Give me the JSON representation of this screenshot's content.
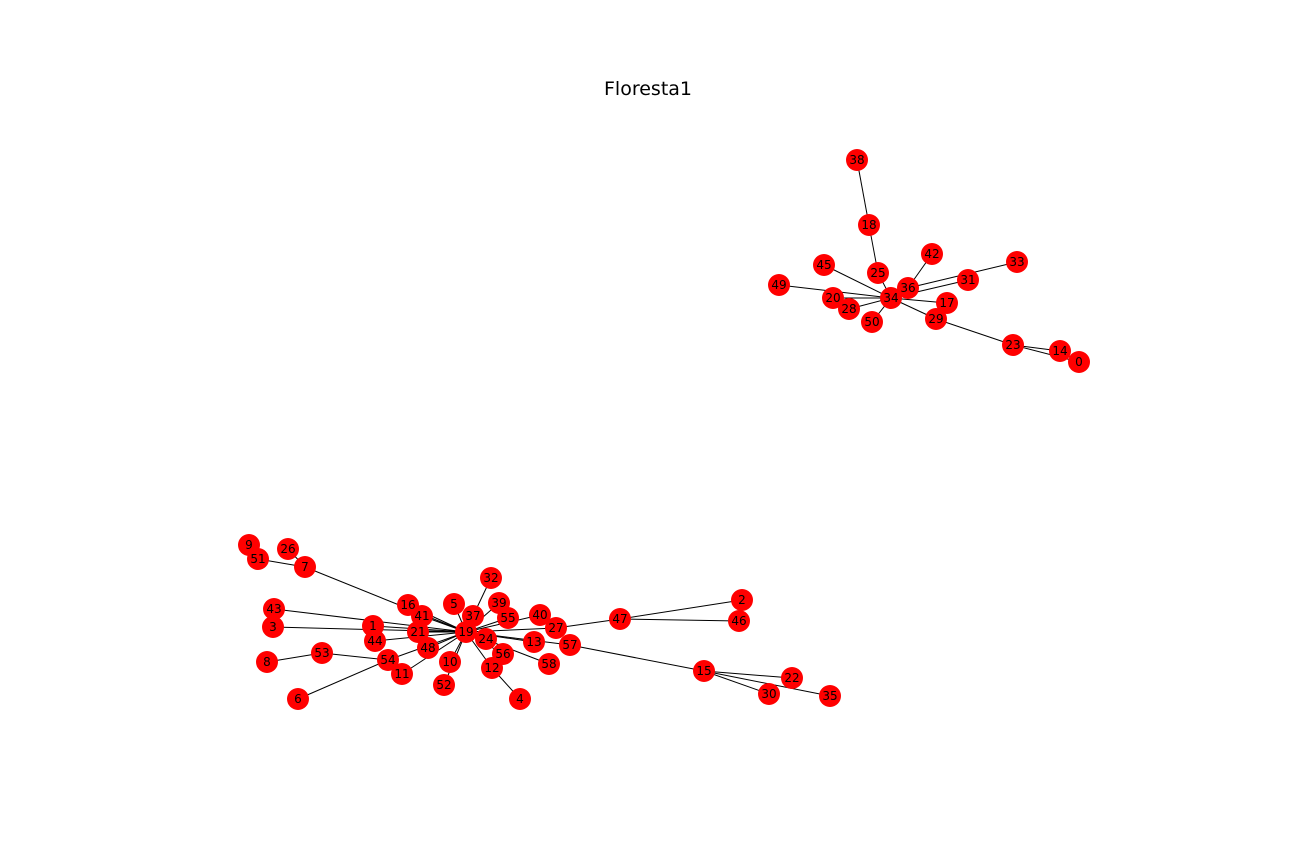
{
  "title": "Floresta1",
  "style": {
    "node_color": "#ff0000",
    "edge_color": "#000000",
    "label_color": "#000000"
  },
  "graph": {
    "nodes": [
      "0",
      "1",
      "2",
      "3",
      "4",
      "5",
      "6",
      "7",
      "8",
      "9",
      "10",
      "11",
      "12",
      "13",
      "14",
      "15",
      "16",
      "17",
      "18",
      "19",
      "20",
      "21",
      "22",
      "23",
      "24",
      "25",
      "26",
      "27",
      "28",
      "29",
      "30",
      "31",
      "32",
      "33",
      "34",
      "35",
      "36",
      "37",
      "38",
      "39",
      "40",
      "41",
      "42",
      "43",
      "44",
      "45",
      "46",
      "47",
      "48",
      "49",
      "50",
      "51",
      "52",
      "53",
      "54",
      "55",
      "56",
      "57",
      "58"
    ],
    "edges": [
      [
        "38",
        "18"
      ],
      [
        "18",
        "25"
      ],
      [
        "25",
        "34"
      ],
      [
        "45",
        "34"
      ],
      [
        "49",
        "34"
      ],
      [
        "20",
        "34"
      ],
      [
        "28",
        "34"
      ],
      [
        "50",
        "34"
      ],
      [
        "36",
        "34"
      ],
      [
        "42",
        "36"
      ],
      [
        "31",
        "34"
      ],
      [
        "33",
        "36"
      ],
      [
        "17",
        "34"
      ],
      [
        "29",
        "34"
      ],
      [
        "29",
        "23"
      ],
      [
        "23",
        "14"
      ],
      [
        "14",
        "0"
      ],
      [
        "23",
        "0"
      ],
      [
        "9",
        "51"
      ],
      [
        "51",
        "7"
      ],
      [
        "26",
        "7"
      ],
      [
        "7",
        "19"
      ],
      [
        "43",
        "19"
      ],
      [
        "3",
        "19"
      ],
      [
        "1",
        "19"
      ],
      [
        "16",
        "19"
      ],
      [
        "41",
        "19"
      ],
      [
        "21",
        "19"
      ],
      [
        "44",
        "19"
      ],
      [
        "48",
        "19"
      ],
      [
        "54",
        "19"
      ],
      [
        "53",
        "54"
      ],
      [
        "8",
        "53"
      ],
      [
        "6",
        "54"
      ],
      [
        "11",
        "19"
      ],
      [
        "10",
        "19"
      ],
      [
        "52",
        "19"
      ],
      [
        "5",
        "19"
      ],
      [
        "37",
        "19"
      ],
      [
        "32",
        "37"
      ],
      [
        "39",
        "19"
      ],
      [
        "55",
        "19"
      ],
      [
        "40",
        "19"
      ],
      [
        "27",
        "19"
      ],
      [
        "47",
        "27"
      ],
      [
        "2",
        "47"
      ],
      [
        "46",
        "47"
      ],
      [
        "24",
        "19"
      ],
      [
        "13",
        "19"
      ],
      [
        "57",
        "19"
      ],
      [
        "15",
        "57"
      ],
      [
        "22",
        "15"
      ],
      [
        "30",
        "15"
      ],
      [
        "35",
        "15"
      ],
      [
        "58",
        "19"
      ],
      [
        "56",
        "19"
      ],
      [
        "12",
        "19"
      ],
      [
        "4",
        "12"
      ]
    ]
  }
}
